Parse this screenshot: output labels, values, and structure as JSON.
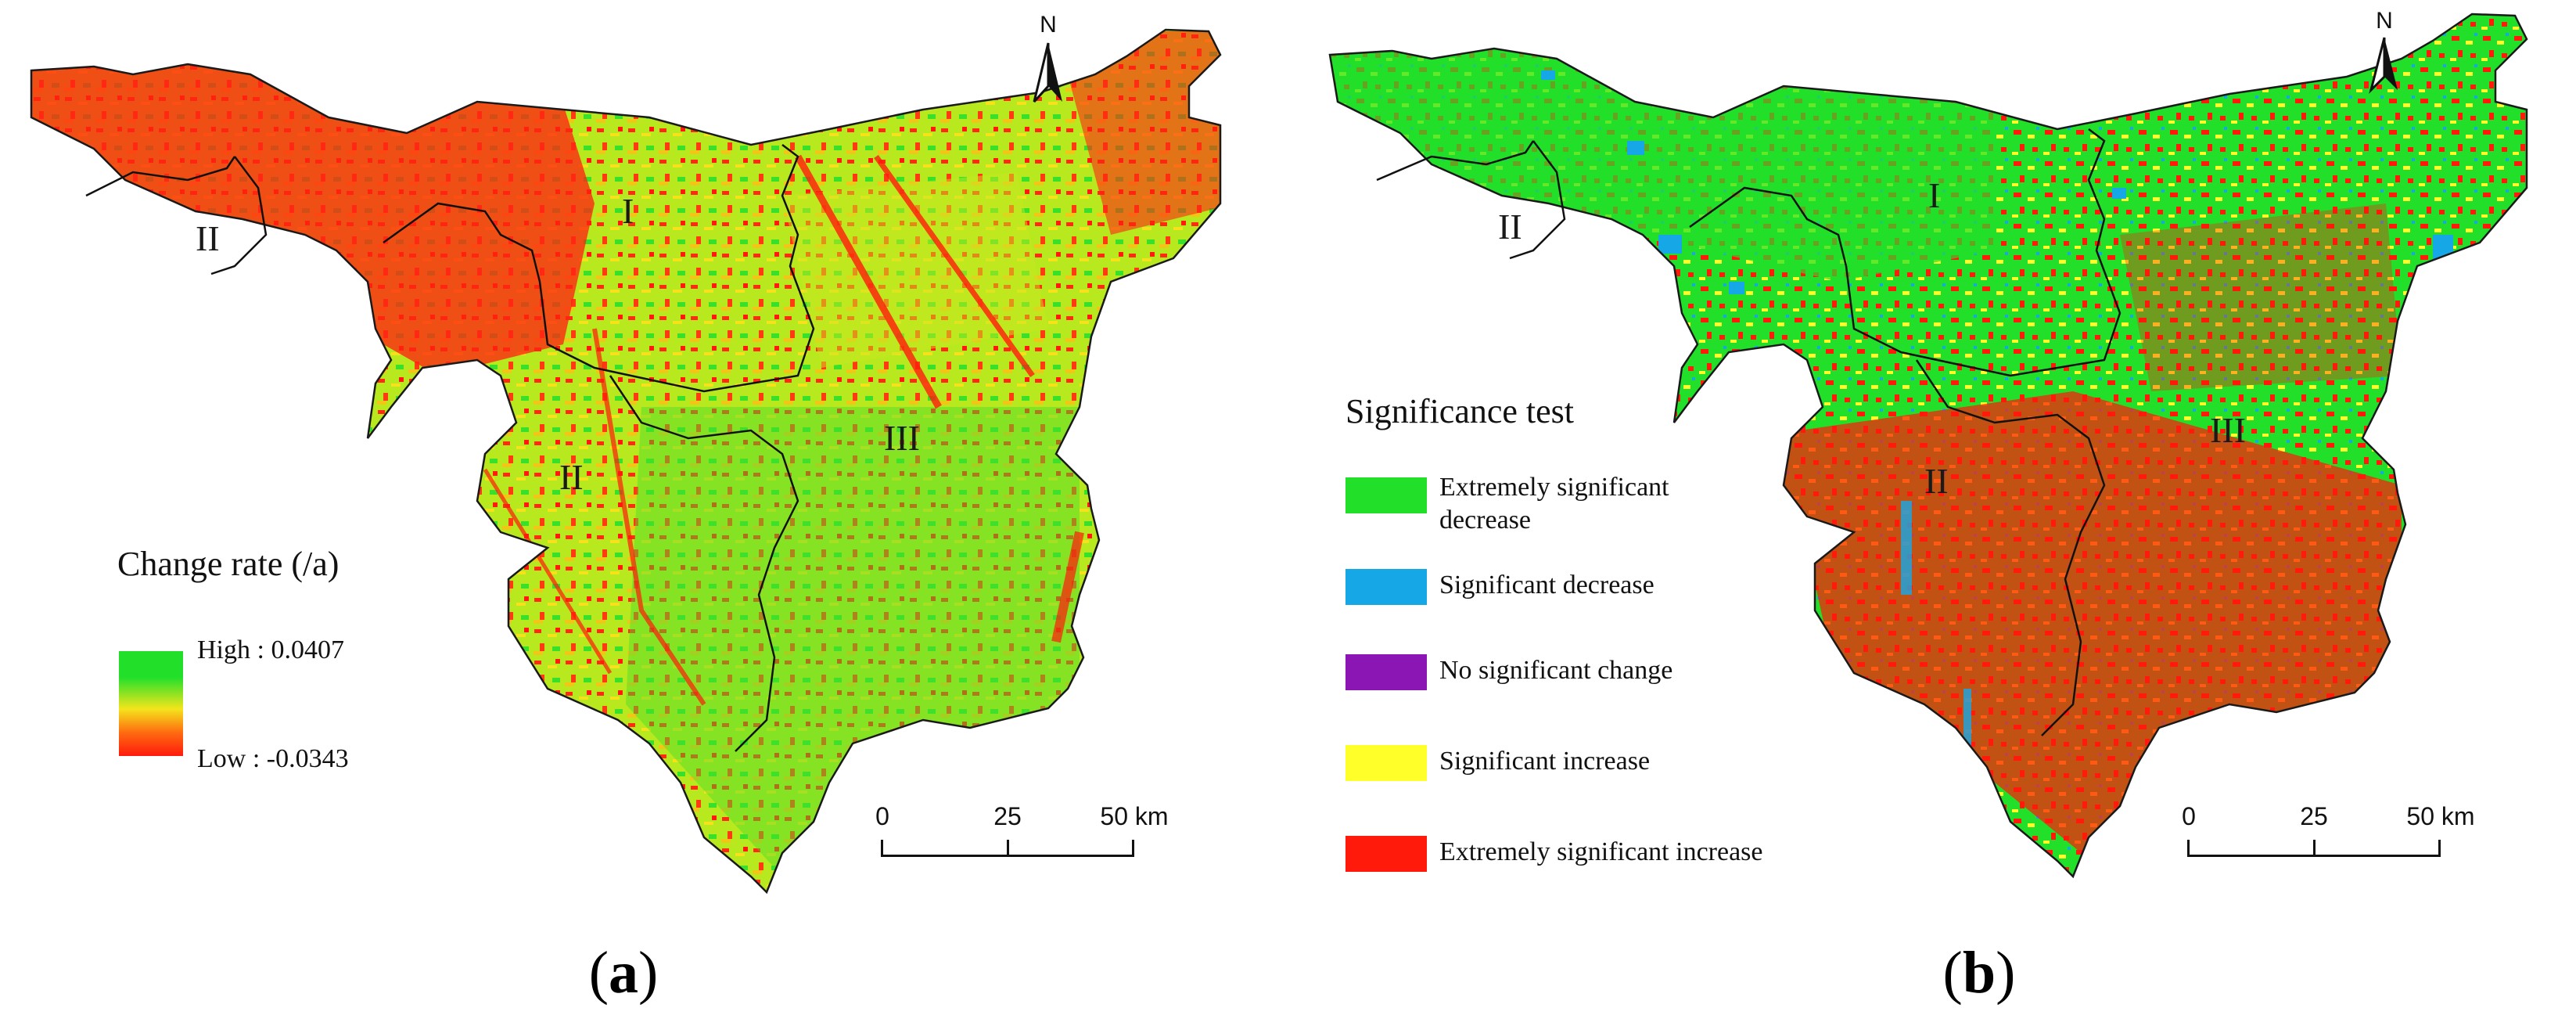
{
  "panel_a": {
    "legend": {
      "title": "Change rate (/a)",
      "high_label": "High : 0.0407",
      "low_label": "Low : -0.0343"
    },
    "scale_bar": {
      "labels": [
        "0",
        "25",
        "50 km"
      ]
    },
    "north_label": "N",
    "regions": [
      "I",
      "II",
      "II",
      "III"
    ],
    "caption": {
      "open": "(",
      "letter": "a",
      "close": ")"
    },
    "colors": {
      "high": "#22e02a",
      "mid": "#f3e51b",
      "low": "#ff1a0c"
    }
  },
  "panel_b": {
    "legend": {
      "title": "Significance test",
      "items": [
        {
          "label": "Extremely significant decrease",
          "color": "#22e02a"
        },
        {
          "label": "Significant decrease",
          "color": "#16a8e6"
        },
        {
          "label": "No significant change",
          "color": "#8c16b3"
        },
        {
          "label": "Significant increase",
          "color": "#ffff2a"
        },
        {
          "label": "Extremely significant increase",
          "color": "#ff1a0c"
        }
      ]
    },
    "scale_bar": {
      "labels": [
        "0",
        "25",
        "50 km"
      ]
    },
    "north_label": "N",
    "regions": [
      "I",
      "II",
      "II",
      "III"
    ],
    "caption": {
      "open": "(",
      "letter": "b",
      "close": ")"
    }
  }
}
